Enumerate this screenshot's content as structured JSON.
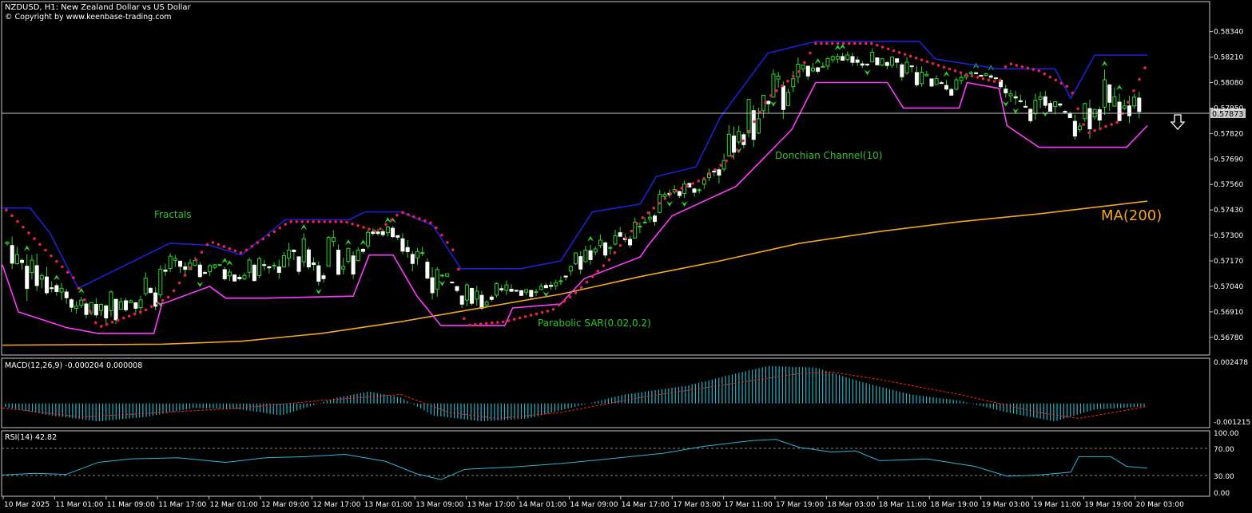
{
  "header": {
    "title": "NZDUSD, H1:  New Zealand Dollar vs US Dollar",
    "copyright": "© Copyright by www.keenbase-trading.com"
  },
  "price_panel": {
    "y_ticks": [
      "0.58340",
      "0.58210",
      "0.58080",
      "0.57950",
      "0.57820",
      "0.57690",
      "0.57560",
      "0.57430",
      "0.57300",
      "0.57170",
      "0.57040",
      "0.56910",
      "0.56780"
    ],
    "current_price": "0.57873",
    "annotations": {
      "fractals": "Fractals",
      "donchian": "Donchian Channel(10)",
      "psar": "Parabolic SAR(0.02,0.2)",
      "ma": "MA(200)"
    },
    "signal": "sell"
  },
  "macd_panel": {
    "label": "MACD(12,26,9) -0.000204 0.000008",
    "y_ticks": [
      "0.002478",
      "-0.001215"
    ]
  },
  "rsi_panel": {
    "label": "RSI(14) 42.82",
    "y_ticks": [
      "100.00",
      "70.00",
      "30.00",
      "0.00"
    ]
  },
  "x_ticks": [
    "10 Mar 2025",
    "11 Mar 01:00",
    "11 Mar 09:00",
    "11 Mar 17:00",
    "12 Mar 01:00",
    "12 Mar 09:00",
    "12 Mar 17:00",
    "13 Mar 01:00",
    "13 Mar 09:00",
    "13 Mar 17:00",
    "14 Mar 01:00",
    "14 Mar 09:00",
    "14 Mar 17:00",
    "17 Mar 03:00",
    "17 Mar 11:00",
    "17 Mar 19:00",
    "18 Mar 03:00",
    "18 Mar 11:00",
    "18 Mar 19:00",
    "19 Mar 03:00",
    "19 Mar 11:00",
    "19 Mar 19:00",
    "20 Mar 03:00"
  ],
  "colors": {
    "bg": "#000000",
    "frame": "#c8c8c8",
    "text": "#ffffff",
    "label_green": "#2fc42f",
    "candle": "#2fd52f",
    "donchian_upper": "#1f1fd9",
    "donchian_lower": "#ff3cff",
    "psar": "#e8224b",
    "ma": "#f5a623",
    "macd_hist": "#26b5c9",
    "macd_signal": "#ff2020",
    "rsi_line": "#2ab7d8"
  },
  "chart_data": {
    "type": "line",
    "series": [
      {
        "name": "MA(200)",
        "values": [
          [
            0,
            0.5674
          ],
          [
            200,
            0.56745
          ],
          [
            300,
            0.5676
          ],
          [
            400,
            0.568
          ],
          [
            500,
            0.5686
          ],
          [
            600,
            0.5693
          ],
          [
            700,
            0.57
          ],
          [
            800,
            0.5709
          ],
          [
            900,
            0.5717
          ],
          [
            1000,
            0.5726
          ],
          [
            1100,
            0.5732
          ],
          [
            1200,
            0.5737
          ],
          [
            1300,
            0.5741
          ],
          [
            1436,
            0.57475
          ]
        ]
      },
      {
        "name": "Donchian Channel(10)",
        "values": [
          [
            0,
            0.5744
          ],
          [
            35,
            0.5744
          ],
          [
            60,
            0.5731
          ],
          [
            95,
            0.5703
          ],
          [
            140,
            0.5712
          ],
          [
            210,
            0.5726
          ],
          [
            260,
            0.5725
          ],
          [
            300,
            0.572
          ],
          [
            355,
            0.5738
          ],
          [
            435,
            0.5738
          ],
          [
            455,
            0.5742
          ],
          [
            500,
            0.5742
          ],
          [
            540,
            0.5735
          ],
          [
            575,
            0.5713
          ],
          [
            650,
            0.5713
          ],
          [
            700,
            0.5717
          ],
          [
            740,
            0.5742
          ],
          [
            800,
            0.5746
          ],
          [
            820,
            0.576
          ],
          [
            870,
            0.5765
          ],
          [
            900,
            0.579
          ],
          [
            960,
            0.5823
          ],
          [
            1020,
            0.5829
          ],
          [
            1150,
            0.5829
          ],
          [
            1170,
            0.582
          ],
          [
            1250,
            0.5815
          ],
          [
            1320,
            0.5815
          ],
          [
            1340,
            0.58
          ],
          [
            1370,
            0.5822
          ],
          [
            1436,
            0.5822
          ]
        ]
      },
      {
        "name": "Donchian lower",
        "values": [
          [
            0,
            0.5715
          ],
          [
            20,
            0.5691
          ],
          [
            80,
            0.5683
          ],
          [
            120,
            0.568
          ],
          [
            190,
            0.568
          ],
          [
            200,
            0.5695
          ],
          [
            260,
            0.5704
          ],
          [
            280,
            0.5698
          ],
          [
            330,
            0.5698
          ],
          [
            440,
            0.5699
          ],
          [
            460,
            0.572
          ],
          [
            490,
            0.572
          ],
          [
            520,
            0.5699
          ],
          [
            550,
            0.5684
          ],
          [
            630,
            0.5684
          ],
          [
            640,
            0.5693
          ],
          [
            700,
            0.5695
          ],
          [
            730,
            0.5708
          ],
          [
            800,
            0.5719
          ],
          [
            810,
            0.5725
          ],
          [
            840,
            0.574
          ],
          [
            920,
            0.5755
          ],
          [
            990,
            0.5784
          ],
          [
            1020,
            0.5808
          ],
          [
            1110,
            0.5808
          ],
          [
            1130,
            0.5795
          ],
          [
            1200,
            0.5795
          ],
          [
            1210,
            0.5808
          ],
          [
            1250,
            0.5805
          ],
          [
            1260,
            0.5786
          ],
          [
            1300,
            0.5775
          ],
          [
            1410,
            0.5775
          ],
          [
            1436,
            0.5786
          ]
        ]
      }
    ],
    "psar": [
      [
        5,
        0.5743
      ],
      [
        60,
        0.572
      ],
      [
        90,
        0.5708
      ],
      [
        120,
        0.5683
      ],
      [
        180,
        0.5692
      ],
      [
        210,
        0.5699
      ],
      [
        260,
        0.5727
      ],
      [
        300,
        0.5721
      ],
      [
        360,
        0.5737
      ],
      [
        430,
        0.5737
      ],
      [
        470,
        0.5732
      ],
      [
        500,
        0.5742
      ],
      [
        540,
        0.5736
      ],
      [
        570,
        0.572
      ],
      [
        580,
        0.5684
      ],
      [
        630,
        0.5686
      ],
      [
        690,
        0.5692
      ],
      [
        720,
        0.5701
      ],
      [
        760,
        0.5717
      ],
      [
        800,
        0.5738
      ],
      [
        840,
        0.5752
      ],
      [
        880,
        0.5759
      ],
      [
        920,
        0.5772
      ],
      [
        960,
        0.58
      ],
      [
        1000,
        0.5814
      ],
      [
        1020,
        0.5828
      ],
      [
        1090,
        0.5828
      ],
      [
        1150,
        0.582
      ],
      [
        1210,
        0.5812
      ],
      [
        1250,
        0.5808
      ],
      [
        1260,
        0.5818
      ],
      [
        1300,
        0.5814
      ],
      [
        1340,
        0.5805
      ],
      [
        1360,
        0.5782
      ],
      [
        1400,
        0.5788
      ],
      [
        1436,
        0.5818
      ]
    ],
    "macd_hist": [
      [
        0,
        -0.0002
      ],
      [
        60,
        -0.0008
      ],
      [
        120,
        -0.0012
      ],
      [
        180,
        -0.0009
      ],
      [
        240,
        -0.0003
      ],
      [
        300,
        -0.0004
      ],
      [
        350,
        -0.0008
      ],
      [
        420,
        0.0004
      ],
      [
        460,
        0.0008
      ],
      [
        500,
        0.0004
      ],
      [
        540,
        -0.0008
      ],
      [
        600,
        -0.0012
      ],
      [
        660,
        -0.001
      ],
      [
        720,
        -0.0002
      ],
      [
        780,
        0.0006
      ],
      [
        860,
        0.0012
      ],
      [
        920,
        0.002
      ],
      [
        960,
        0.0025
      ],
      [
        1020,
        0.0024
      ],
      [
        1080,
        0.0014
      ],
      [
        1140,
        0.0006
      ],
      [
        1200,
        0.0002
      ],
      [
        1260,
        -0.0006
      ],
      [
        1320,
        -0.0012
      ],
      [
        1370,
        -0.0004
      ],
      [
        1436,
        -0.0002
      ]
    ],
    "macd_signal": [
      [
        0,
        -0.0003
      ],
      [
        100,
        -0.0009
      ],
      [
        200,
        -0.0006
      ],
      [
        300,
        -0.0003
      ],
      [
        400,
        0.0002
      ],
      [
        500,
        0.0006
      ],
      [
        560,
        -0.0006
      ],
      [
        620,
        -0.001
      ],
      [
        700,
        -0.0006
      ],
      [
        800,
        0.0004
      ],
      [
        900,
        0.0012
      ],
      [
        1000,
        0.002
      ],
      [
        1040,
        0.0021
      ],
      [
        1100,
        0.0016
      ],
      [
        1200,
        0.0006
      ],
      [
        1300,
        -0.0006
      ],
      [
        1350,
        -0.001
      ],
      [
        1436,
        -0.0002
      ]
    ],
    "rsi": [
      [
        0,
        30
      ],
      [
        40,
        33
      ],
      [
        80,
        31
      ],
      [
        120,
        52
      ],
      [
        160,
        58
      ],
      [
        220,
        60
      ],
      [
        280,
        52
      ],
      [
        330,
        60
      ],
      [
        380,
        62
      ],
      [
        430,
        66
      ],
      [
        480,
        54
      ],
      [
        520,
        32
      ],
      [
        550,
        22
      ],
      [
        580,
        40
      ],
      [
        640,
        44
      ],
      [
        700,
        50
      ],
      [
        760,
        58
      ],
      [
        830,
        68
      ],
      [
        880,
        80
      ],
      [
        940,
        90
      ],
      [
        970,
        92
      ],
      [
        1000,
        78
      ],
      [
        1040,
        70
      ],
      [
        1070,
        72
      ],
      [
        1100,
        55
      ],
      [
        1160,
        58
      ],
      [
        1220,
        45
      ],
      [
        1260,
        28
      ],
      [
        1300,
        30
      ],
      [
        1340,
        35
      ],
      [
        1350,
        62
      ],
      [
        1390,
        62
      ],
      [
        1410,
        45
      ],
      [
        1436,
        42
      ]
    ],
    "y_range_price": [
      0.5671,
      0.5842
    ],
    "y_range_macd": [
      -0.0014,
      0.0027
    ],
    "y_range_rsi": [
      0,
      100
    ]
  }
}
